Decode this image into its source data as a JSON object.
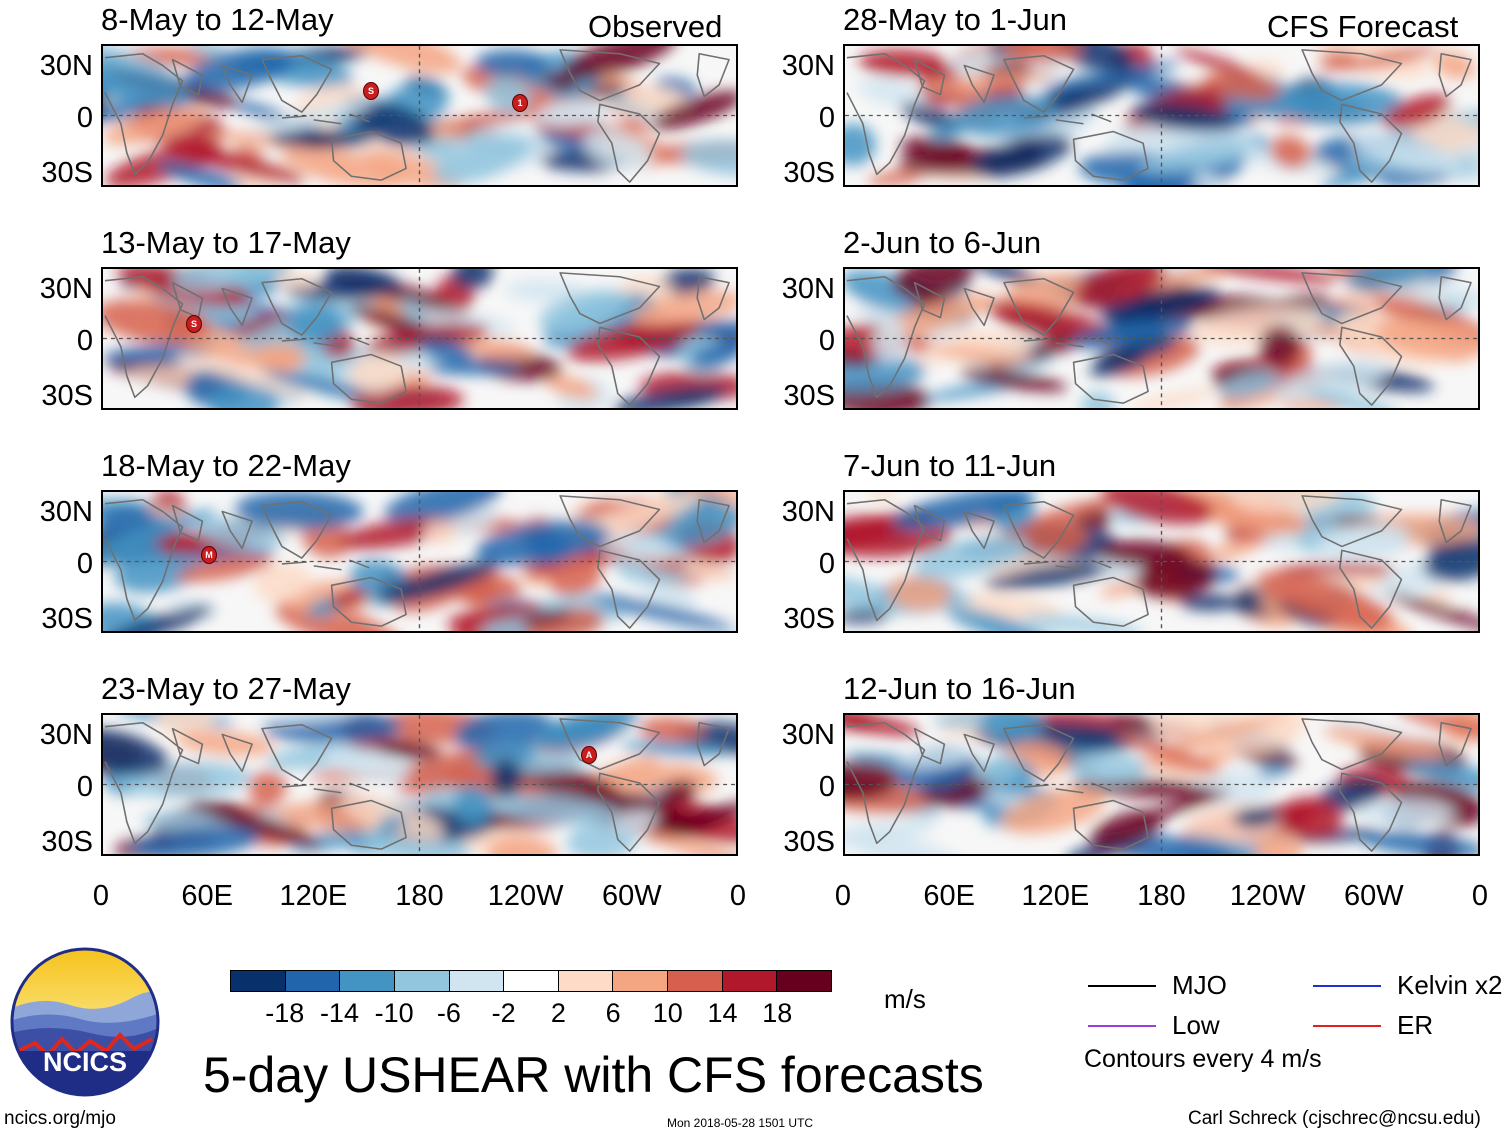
{
  "panels_left": [
    {
      "title": "8-May to 12-May",
      "tag": "Observed",
      "seed": 11
    },
    {
      "title": "13-May to 17-May",
      "tag": "",
      "seed": 23
    },
    {
      "title": "18-May to 22-May",
      "tag": "",
      "seed": 37
    },
    {
      "title": "23-May to 27-May",
      "tag": "",
      "seed": 41
    }
  ],
  "panels_right": [
    {
      "title": "28-May to 1-Jun",
      "tag": "CFS Forecast",
      "seed": 53
    },
    {
      "title": "2-Jun to 6-Jun",
      "tag": "",
      "seed": 67
    },
    {
      "title": "7-Jun to 11-Jun",
      "tag": "",
      "seed": 71
    },
    {
      "title": "12-Jun to 16-Jun",
      "tag": "",
      "seed": 89
    }
  ],
  "lat_labels": [
    "30N",
    "0",
    "30S"
  ],
  "lon_labels": [
    "0",
    "60E",
    "120E",
    "180",
    "120W",
    "60W",
    "0"
  ],
  "storm_markers": [
    {
      "panel": 0,
      "label": "S"
    },
    {
      "panel": 0,
      "label": "1"
    },
    {
      "panel": 1,
      "label": "S"
    },
    {
      "panel": 2,
      "label": "M"
    },
    {
      "panel": 3,
      "label": "A"
    }
  ],
  "colorbar": {
    "colors": [
      "#08306b",
      "#2166ac",
      "#4393c3",
      "#92c5de",
      "#d1e5f0",
      "#ffffff",
      "#fddbc7",
      "#f4a582",
      "#d6604d",
      "#b2182b",
      "#67001f"
    ],
    "ticks": [
      "-18",
      "-14",
      "-10",
      "-6",
      "-2",
      "2",
      "6",
      "10",
      "14",
      "18"
    ],
    "unit": "m/s"
  },
  "legend": [
    {
      "label": "MJO",
      "color": "#000000"
    },
    {
      "label": "Kelvin x2",
      "color": "#1f2fd6"
    },
    {
      "label": "Low",
      "color": "#9b3fd9"
    },
    {
      "label": "ER",
      "color": "#e02020"
    }
  ],
  "contour_note": "Contours every 4 m/s",
  "logo_text": "NCICS",
  "main_title": "5-day USHEAR with CFS forecasts",
  "footer": {
    "left": "ncics.org/mjo",
    "center": "Mon 2018-05-28 1501 UTC",
    "right": "Carl Schreck (cjschrec@ncsu.edu)"
  }
}
